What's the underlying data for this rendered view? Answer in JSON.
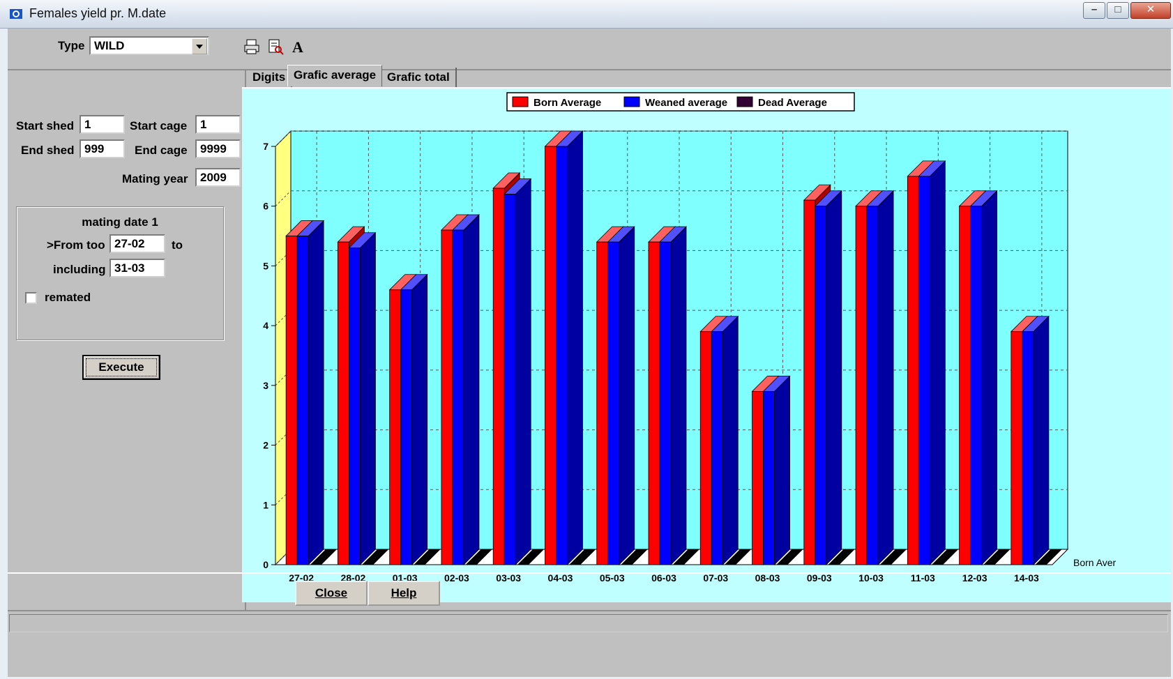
{
  "window": {
    "title": "Females yield pr. M.date"
  },
  "toolbar": {
    "type_label": "Type",
    "type_value": "WILD"
  },
  "filters": {
    "start_shed_label": "Start shed",
    "start_shed_value": "1",
    "start_cage_label": "Start cage",
    "start_cage_value": "1",
    "end_shed_label": "End shed",
    "end_shed_value": "999",
    "end_cage_label": "End cage",
    "end_cage_value": "9999",
    "mating_year_label": "Mating year",
    "mating_year_value": "2009"
  },
  "group": {
    "title": "mating date 1",
    "from_label": ">From too",
    "from_value": "27-02",
    "to_label": "to",
    "including_label": "including",
    "including_value": "31-03",
    "remated_label": "remated",
    "remated_checked": false
  },
  "execute_label": "Execute",
  "tabs": [
    {
      "label": "Digits",
      "active": false
    },
    {
      "label": "Grafic average",
      "active": true
    },
    {
      "label": "Grafic total",
      "active": false
    }
  ],
  "buttons": {
    "close_label": "Close",
    "help_label": "Help"
  },
  "colors": {
    "born": "#ff0000",
    "weaned": "#0000ff",
    "dead": "#000000",
    "dead_legend": "#330033",
    "plot_bg": "#80ffff",
    "wall_left": "#ffff80"
  },
  "chart_data": {
    "type": "bar",
    "categories": [
      "27-02",
      "28-02",
      "01-03",
      "02-03",
      "03-03",
      "04-03",
      "05-03",
      "06-03",
      "07-03",
      "08-03",
      "09-03",
      "10-03",
      "11-03",
      "12-03",
      "14-03"
    ],
    "series": [
      {
        "name": "Born Average",
        "values": [
          5.5,
          5.4,
          4.6,
          5.6,
          6.3,
          7.0,
          5.4,
          5.4,
          3.9,
          2.9,
          6.1,
          6.0,
          6.5,
          6.0,
          3.9
        ]
      },
      {
        "name": "Weaned average",
        "values": [
          5.5,
          5.3,
          4.6,
          5.6,
          6.2,
          7.0,
          5.4,
          5.4,
          3.9,
          2.9,
          6.0,
          6.0,
          6.5,
          6.0,
          3.9
        ]
      },
      {
        "name": "Dead Average",
        "values": [
          0.0,
          0.1,
          0.0,
          0.0,
          0.2,
          0.1,
          0.0,
          0.0,
          0.0,
          0.0,
          0.3,
          0.0,
          0.0,
          0.0,
          0.0
        ]
      }
    ],
    "ylim": [
      0,
      7
    ],
    "yticks": [
      "0",
      "1",
      "2",
      "3",
      "4",
      "5",
      "6",
      "7"
    ],
    "depth_axis_label": "Born Aver",
    "legend": "top-center",
    "grid": true
  }
}
